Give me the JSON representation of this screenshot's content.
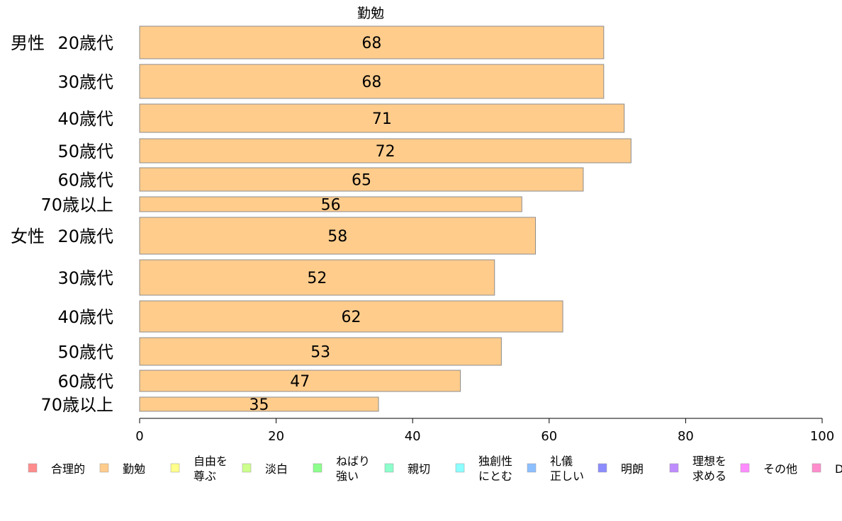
{
  "chart_data": {
    "type": "bar",
    "orientation": "horizontal",
    "title": "勤勉",
    "categories": [
      {
        "group": "男性",
        "label": "20歳代"
      },
      {
        "group": "",
        "label": "30歳代"
      },
      {
        "group": "",
        "label": "40歳代"
      },
      {
        "group": "",
        "label": "50歳代"
      },
      {
        "group": "",
        "label": "60歳代"
      },
      {
        "group": "",
        "label": "70歳以上"
      },
      {
        "group": "女性",
        "label": "20歳代"
      },
      {
        "group": "",
        "label": "30歳代"
      },
      {
        "group": "",
        "label": "40歳代"
      },
      {
        "group": "",
        "label": "50歳代"
      },
      {
        "group": "",
        "label": "60歳代"
      },
      {
        "group": "",
        "label": "70歳以上"
      }
    ],
    "values": [
      68,
      68,
      71,
      72,
      65,
      56,
      58,
      52,
      62,
      53,
      47,
      35
    ],
    "data_labels": [
      "68",
      "68",
      "71",
      "72",
      "65",
      "56",
      "58",
      "52",
      "62",
      "53",
      "47",
      "35"
    ],
    "bar_color": "#FFCC8C",
    "xlim": [
      0,
      100
    ],
    "x_ticks": [
      0,
      20,
      40,
      60,
      80,
      100
    ],
    "grid": false,
    "legend_position": "bottom",
    "legend": [
      {
        "label": [
          "合理的"
        ],
        "color": "#FF8C8C"
      },
      {
        "label": [
          "勤勉"
        ],
        "color": "#FFCC8C"
      },
      {
        "label": [
          "自由を",
          "尊ぶ"
        ],
        "color": "#FFFF8C"
      },
      {
        "label": [
          "淡白"
        ],
        "color": "#CCFF8C"
      },
      {
        "label": [
          "ねばり",
          "強い"
        ],
        "color": "#8CFF8C"
      },
      {
        "label": [
          "親切"
        ],
        "color": "#8CFFCC"
      },
      {
        "label": [
          "独創性",
          "にとむ"
        ],
        "color": "#8CFFFF"
      },
      {
        "label": [
          "礼儀",
          "正しい"
        ],
        "color": "#8CBFFF"
      },
      {
        "label": [
          "明朗"
        ],
        "color": "#8C8CFF"
      },
      {
        "label": [
          "理想を",
          "求める"
        ],
        "color": "#BF8CFF"
      },
      {
        "label": [
          "その他"
        ],
        "color": "#FF8CFF"
      },
      {
        "label": [
          "D"
        ],
        "color": "#FF8CCC"
      }
    ]
  }
}
